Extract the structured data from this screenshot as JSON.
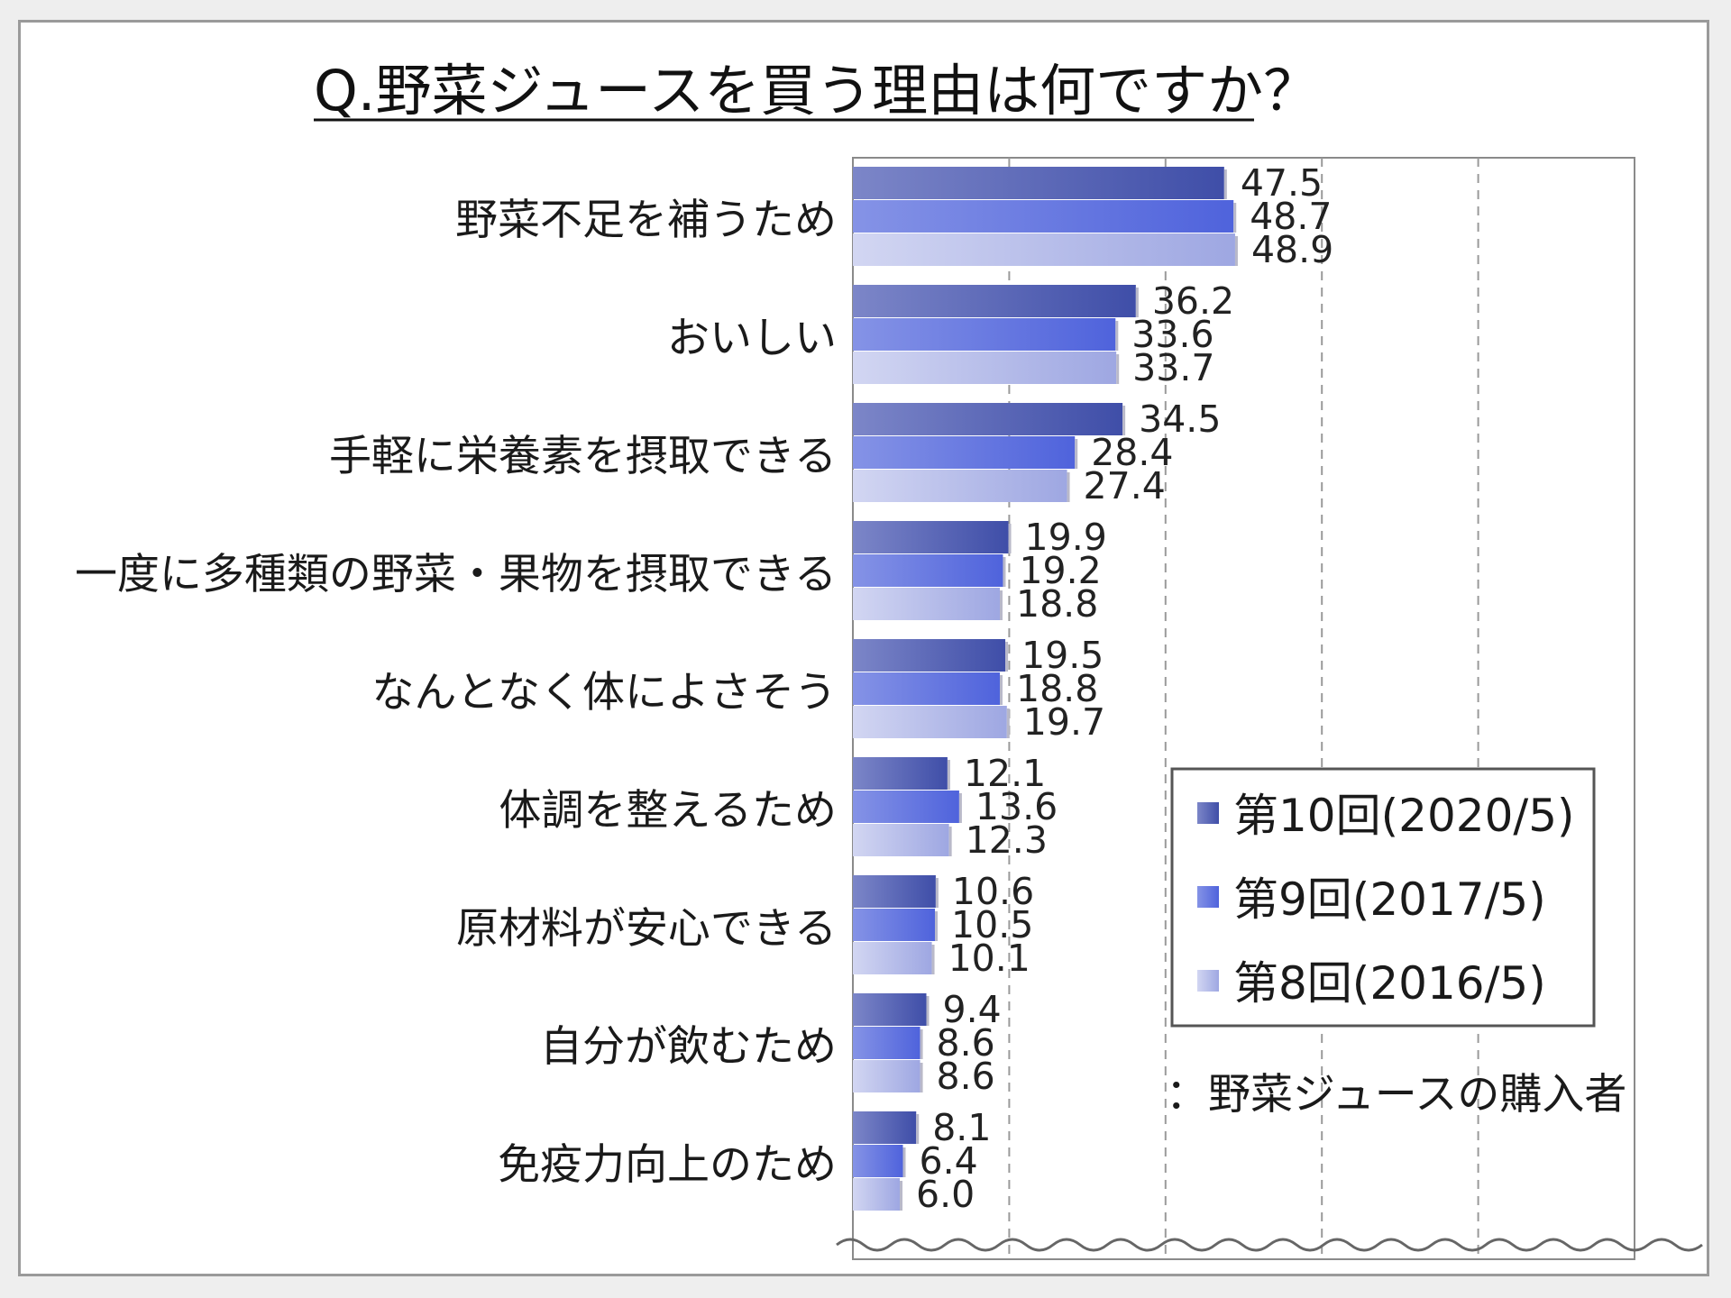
{
  "chart_data": {
    "type": "bar",
    "orientation": "horizontal",
    "title": "Q.野菜ジュースを買う理由は何ですか？",
    "categories": [
      "野菜不足を補うため",
      "おいしい",
      "手軽に栄養素を摂取できる",
      "一度に多種類の野菜・果物を摂取できる",
      "なんとなく体によさそう",
      "体調を整えるため",
      "原材料が安心できる",
      "自分が飲むため",
      "免疫力向上のため"
    ],
    "series": [
      {
        "name": "第10回(2020/5)",
        "color": "#3f4ea8",
        "values": [
          47.5,
          36.2,
          34.5,
          19.9,
          19.5,
          12.1,
          10.6,
          9.4,
          8.1
        ]
      },
      {
        "name": "第9回(2017/5)",
        "color": "#5468dc",
        "values": [
          48.7,
          33.6,
          28.4,
          19.2,
          18.8,
          13.6,
          10.5,
          8.6,
          6.4
        ]
      },
      {
        "name": "第8回(2016/5)",
        "color": "#a9b1e6",
        "values": [
          48.9,
          33.7,
          27.4,
          18.8,
          19.7,
          12.3,
          10.1,
          8.6,
          6.0
        ]
      }
    ],
    "value_labels": {
      "s0": [
        "47.5",
        "36.2",
        "34.5",
        "19.9",
        "19.5",
        "12.1",
        "10.6",
        "9.4",
        "8.1"
      ],
      "s1": [
        "48.7",
        "33.6",
        "28.4",
        "19.2",
        "18.8",
        "13.6",
        "10.5",
        "8.6",
        "6.4"
      ],
      "s2": [
        "48.9",
        "33.7",
        "27.4",
        "18.8",
        "19.7",
        "12.3",
        "10.1",
        "8.6",
        "6.0"
      ]
    },
    "xlim": [
      0,
      100
    ],
    "gridlines": [
      20,
      40,
      60,
      80
    ],
    "grid": true,
    "axis_break": true,
    "legend_position": "right",
    "note": "：野菜ジュースの購入者"
  }
}
